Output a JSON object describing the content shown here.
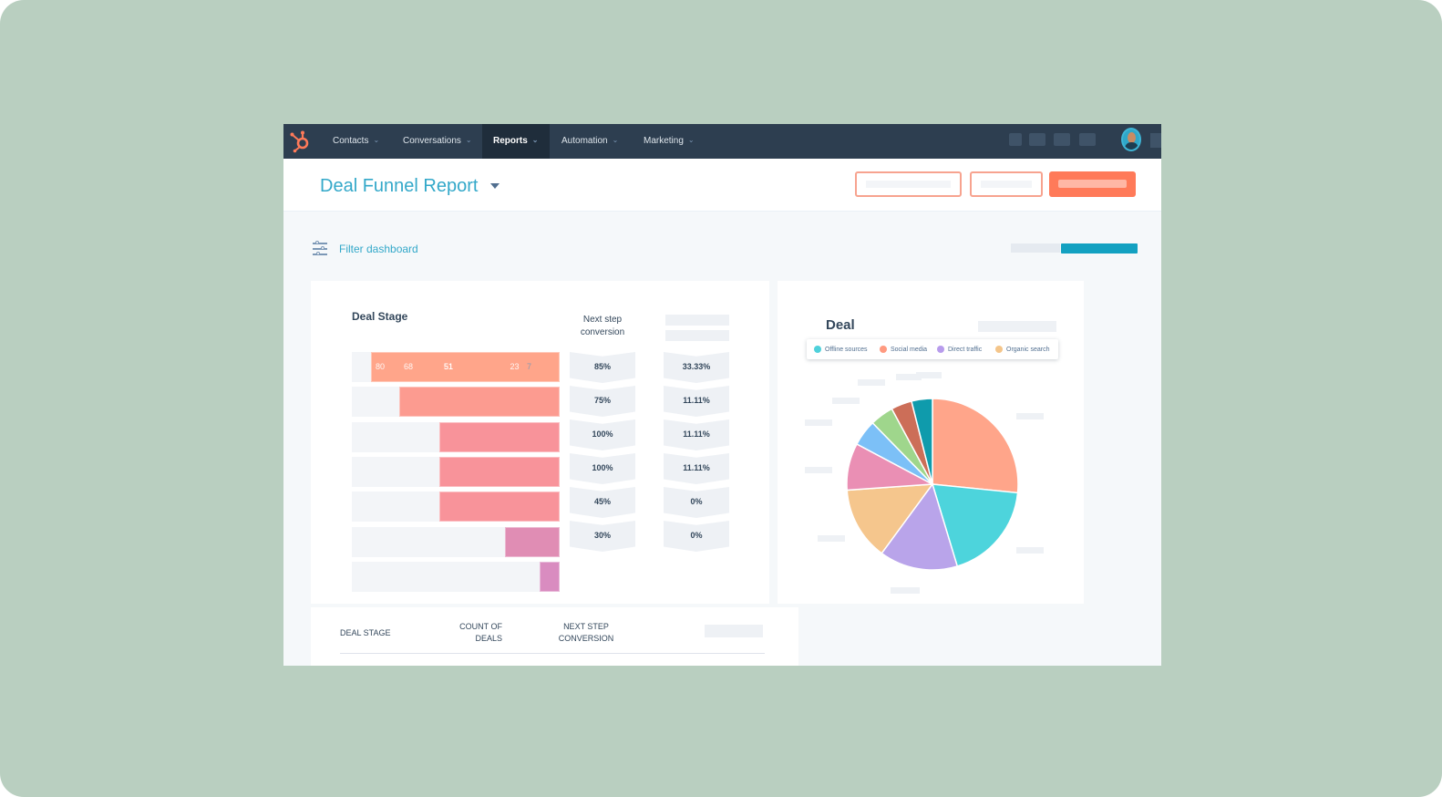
{
  "nav": {
    "items": [
      {
        "label": "Contacts",
        "active": false
      },
      {
        "label": "Conversations",
        "active": false
      },
      {
        "label": "Reports",
        "active": true
      },
      {
        "label": "Automation",
        "active": false
      },
      {
        "label": "Marketing",
        "active": false
      }
    ],
    "logo_icon": "hubspot-sprocket-icon",
    "accent": "#ff7a59",
    "bar_color": "#2d3e50"
  },
  "header": {
    "title": "Deal Funnel Report",
    "title_color": "#33a8c9",
    "primary_color": "#ff7a59"
  },
  "filter": {
    "label": "Filter dashboard",
    "icon": "sliders-icon"
  },
  "funnel": {
    "title": "Deal Stage",
    "conversion_header": "Next step conversion",
    "stages": [
      {
        "count": "80",
        "next_step": "85%",
        "rate": "33.33%",
        "color": "#ffa58a"
      },
      {
        "count": "68",
        "next_step": "75%",
        "rate": "11.11%",
        "color": "#fc9b90"
      },
      {
        "count": "51",
        "next_step": "100%",
        "rate": "11.11%",
        "color": "#f8939a"
      },
      {
        "count": "51",
        "next_step": "100%",
        "rate": "11.11%",
        "color": "#f8939a"
      },
      {
        "count": "51",
        "next_step": "45%",
        "rate": "0%",
        "color": "#f8939a"
      },
      {
        "count": "23",
        "next_step": "30%",
        "rate": "0%",
        "color": "#e08db4"
      },
      {
        "count": "7",
        "next_step": "",
        "rate": "",
        "color": "#d98cc0"
      }
    ],
    "max_count": 80
  },
  "pie": {
    "title": "Deal",
    "legend": [
      {
        "label": "Offline sources",
        "color": "#4fd1db"
      },
      {
        "label": "Social media",
        "color": "#ff9a80"
      },
      {
        "label": "Direct traffic",
        "color": "#b89cec"
      },
      {
        "label": "Organic search",
        "color": "#f4c58a"
      }
    ]
  },
  "chart_data": {
    "type": "pie",
    "title": "Deal",
    "slices": [
      {
        "label": "Social media",
        "value": 27,
        "color": "#ffa58a"
      },
      {
        "label": "Offline sources",
        "value": 19,
        "color": "#4dd4dc"
      },
      {
        "label": "Direct traffic",
        "value": 15,
        "color": "#b9a4ea"
      },
      {
        "label": "Organic search",
        "value": 14,
        "color": "#f5c68d"
      },
      {
        "value": 9,
        "color": "#ea8fb4"
      },
      {
        "value": 5,
        "color": "#7cc0f7"
      },
      {
        "value": 4.5,
        "color": "#9fd68c"
      },
      {
        "value": 4,
        "color": "#cc6e58"
      },
      {
        "value": 4,
        "color": "#0f9bac"
      }
    ],
    "legend_placement": "top"
  },
  "table": {
    "headers": [
      "Deal stage",
      "Count of deals",
      "Next step conversion"
    ]
  }
}
